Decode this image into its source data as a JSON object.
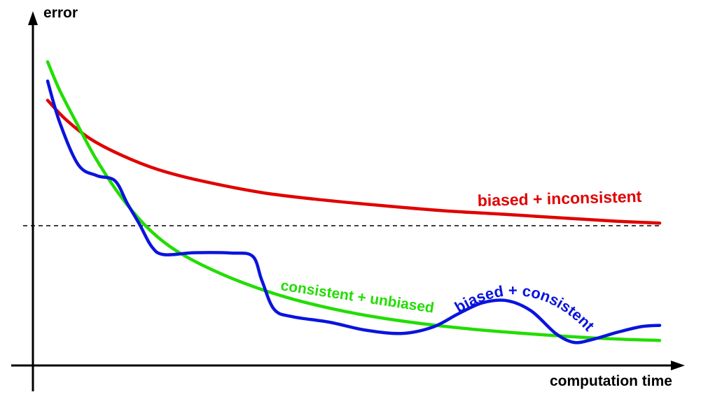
{
  "chart_data": {
    "type": "line",
    "xlabel": "computation time",
    "ylabel": "error",
    "xlim": [
      0,
      100
    ],
    "ylim": [
      0,
      100
    ],
    "grid": false,
    "ticks": false,
    "reference_line": {
      "y": 40,
      "style": "dashed",
      "color": "#000000"
    },
    "series": [
      {
        "name": "biased + inconsistent",
        "color": "#e00000",
        "x": [
          0,
          3,
          7,
          12,
          18,
          25,
          35,
          45,
          55,
          65,
          75,
          85,
          93,
          100
        ],
        "y": [
          79,
          73,
          67,
          62,
          57.5,
          54,
          50.3,
          48,
          46.2,
          44.6,
          43.5,
          42.3,
          41.4,
          40.8
        ]
      },
      {
        "name": "consistent + unbiased",
        "color": "#22dd00",
        "x": [
          0,
          2,
          5,
          8,
          12,
          16,
          20,
          25,
          32,
          40,
          50,
          60,
          70,
          80,
          90,
          100
        ],
        "y": [
          91,
          82,
          71,
          60.5,
          49,
          40,
          33.5,
          28,
          22.2,
          17.2,
          12.8,
          9.8,
          7.7,
          6.2,
          5,
          4.3
        ]
      },
      {
        "name": "biased + consistent",
        "color": "#0a14dd",
        "x": [
          0,
          2,
          5,
          8,
          11,
          13,
          15,
          17,
          19,
          24,
          30,
          33.5,
          35,
          37,
          40,
          46,
          52,
          58,
          63,
          67,
          71,
          75,
          79,
          83,
          86,
          89,
          93,
          97,
          100
        ],
        "y": [
          85,
          72,
          59,
          55.6,
          54,
          47,
          40.5,
          33.5,
          31,
          31.6,
          31.5,
          30.5,
          23,
          14,
          11.7,
          10,
          7.5,
          6.5,
          8.5,
          12.5,
          16,
          16.7,
          13.5,
          6.5,
          3.7,
          4.6,
          6.8,
          8.6,
          9
        ]
      }
    ]
  }
}
